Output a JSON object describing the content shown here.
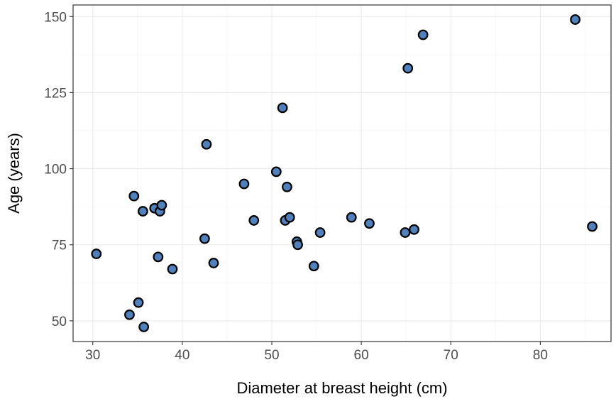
{
  "chart_data": {
    "type": "scatter",
    "title": "",
    "xlabel": "Diameter at breast height (cm)",
    "ylabel": "Age (years)",
    "xlim": [
      27.8,
      87.9
    ],
    "ylim": [
      43.2,
      153.8
    ],
    "x_ticks": [
      30,
      40,
      50,
      60,
      70,
      80
    ],
    "y_ticks": [
      50,
      75,
      100,
      125,
      150
    ],
    "x_tick_labels": [
      "30",
      "40",
      "50",
      "60",
      "70",
      "80"
    ],
    "y_tick_labels": [
      "50",
      "75",
      "100",
      "125",
      "150"
    ],
    "grid": true,
    "legend": "none",
    "point_fill": "#4f81bd",
    "point_stroke": "#000000",
    "grid_major_color": "#ebebeb",
    "grid_minor_color": "#f4f4f4",
    "points": [
      {
        "x": 30.4,
        "y": 72
      },
      {
        "x": 34.1,
        "y": 52
      },
      {
        "x": 34.6,
        "y": 91
      },
      {
        "x": 35.1,
        "y": 56
      },
      {
        "x": 35.6,
        "y": 86
      },
      {
        "x": 35.7,
        "y": 48
      },
      {
        "x": 36.9,
        "y": 87
      },
      {
        "x": 37.3,
        "y": 71
      },
      {
        "x": 37.5,
        "y": 86
      },
      {
        "x": 37.7,
        "y": 88
      },
      {
        "x": 38.9,
        "y": 67
      },
      {
        "x": 42.5,
        "y": 77
      },
      {
        "x": 42.7,
        "y": 108
      },
      {
        "x": 43.5,
        "y": 69
      },
      {
        "x": 46.9,
        "y": 95
      },
      {
        "x": 48.0,
        "y": 83
      },
      {
        "x": 50.5,
        "y": 99
      },
      {
        "x": 51.2,
        "y": 120
      },
      {
        "x": 51.5,
        "y": 83
      },
      {
        "x": 51.7,
        "y": 94
      },
      {
        "x": 52.0,
        "y": 84
      },
      {
        "x": 52.8,
        "y": 76
      },
      {
        "x": 52.9,
        "y": 75
      },
      {
        "x": 54.7,
        "y": 68
      },
      {
        "x": 55.4,
        "y": 79
      },
      {
        "x": 58.9,
        "y": 84
      },
      {
        "x": 60.9,
        "y": 82
      },
      {
        "x": 64.9,
        "y": 79
      },
      {
        "x": 65.2,
        "y": 133
      },
      {
        "x": 65.9,
        "y": 80
      },
      {
        "x": 66.9,
        "y": 144
      },
      {
        "x": 83.9,
        "y": 149
      },
      {
        "x": 85.8,
        "y": 81
      }
    ]
  }
}
